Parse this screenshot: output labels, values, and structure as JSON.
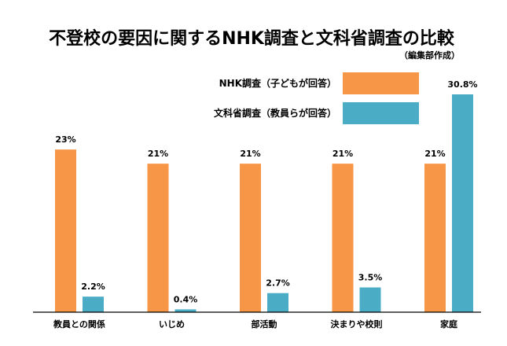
{
  "chart_data": {
    "type": "bar",
    "title": "不登校の要因に関するNHK調査と文科省調査の比較",
    "subtitle": "（編集部作成）",
    "categories": [
      "教員との関係",
      "いじめ",
      "部活動",
      "決まりや校則",
      "家庭"
    ],
    "series": [
      {
        "name": "NHK調査（子どもが回答）",
        "color": "#F79646",
        "values": [
          23,
          21,
          21,
          21,
          21
        ],
        "labels": [
          "23%",
          "21%",
          "21%",
          "21%",
          "21%"
        ]
      },
      {
        "name": "文科省調査（教員らが回答）",
        "color": "#4BACC6",
        "values": [
          2.2,
          0.4,
          2.7,
          3.5,
          30.8
        ],
        "labels": [
          "2.2%",
          "0.4%",
          "2.7%",
          "3.5%",
          "30.8%"
        ]
      }
    ],
    "ylim": [
      0,
      30.8
    ],
    "grid": false,
    "legend": "top-right",
    "unit": "%"
  }
}
